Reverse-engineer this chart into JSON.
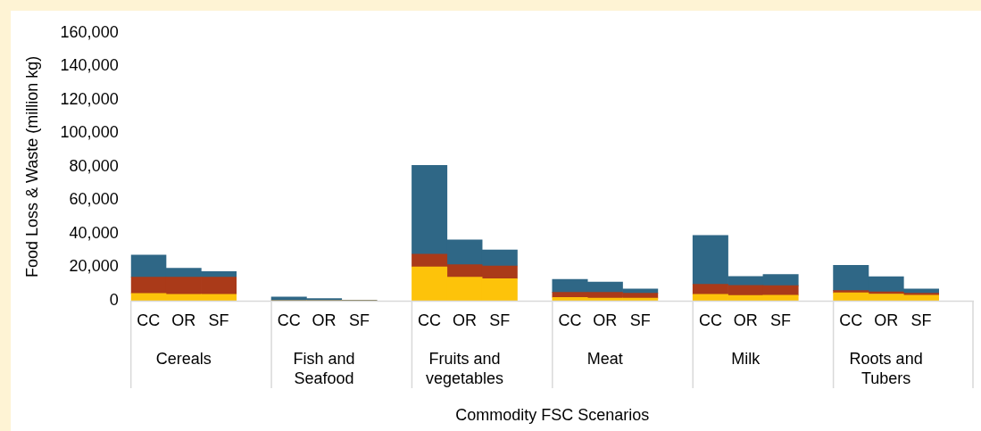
{
  "chart_data": {
    "type": "bar",
    "stacked": true,
    "ylabel": "Food Loss & Waste (million kg)",
    "xlabel": "Commodity FSC Scenarios",
    "categories": [
      "CC",
      "OR",
      "SF",
      "CC",
      "OR",
      "SF",
      "CC",
      "OR",
      "SF",
      "CC",
      "OR",
      "SF",
      "CC",
      "OR",
      "SF",
      "CC",
      "OR",
      "SF"
    ],
    "annotations": [
      "Cereals",
      "Fish and Seafood",
      "Fruits and vegetables",
      "Meat",
      "Milk",
      "Roots and Tubers"
    ],
    "series": [
      {
        "color": "#fdc30a",
        "values": [
          4300,
          3800,
          3800,
          0,
          0,
          0,
          20200,
          14100,
          13200,
          2000,
          1600,
          1500,
          3800,
          3100,
          3300,
          4700,
          4000,
          3300
        ]
      },
      {
        "color": "#aa3a19",
        "values": [
          9800,
          10300,
          10300,
          0,
          0,
          0,
          7600,
          7400,
          7600,
          3000,
          3400,
          3000,
          6000,
          6100,
          5700,
          1400,
          1300,
          1200
        ]
      },
      {
        "color": "#2f6786",
        "values": [
          13200,
          5300,
          3300,
          2200,
          1300,
          400,
          53000,
          14800,
          9600,
          7800,
          6200,
          2500,
          29200,
          5300,
          6700,
          15100,
          9000,
          2500
        ]
      }
    ],
    "ylim": [
      0,
      160000
    ],
    "yticks": [
      {
        "value": 0,
        "label": "0"
      },
      {
        "value": 20000,
        "label": "20,000"
      },
      {
        "value": 40000,
        "label": "40,000"
      },
      {
        "value": 60000,
        "label": "60,000"
      },
      {
        "value": 80000,
        "label": "80,000"
      },
      {
        "value": 100000,
        "label": "100,000"
      },
      {
        "value": 120000,
        "label": "120,000"
      },
      {
        "value": 140000,
        "label": "140,000"
      },
      {
        "value": 160000,
        "label": "160,000"
      }
    ],
    "grid": false,
    "legend": false
  }
}
